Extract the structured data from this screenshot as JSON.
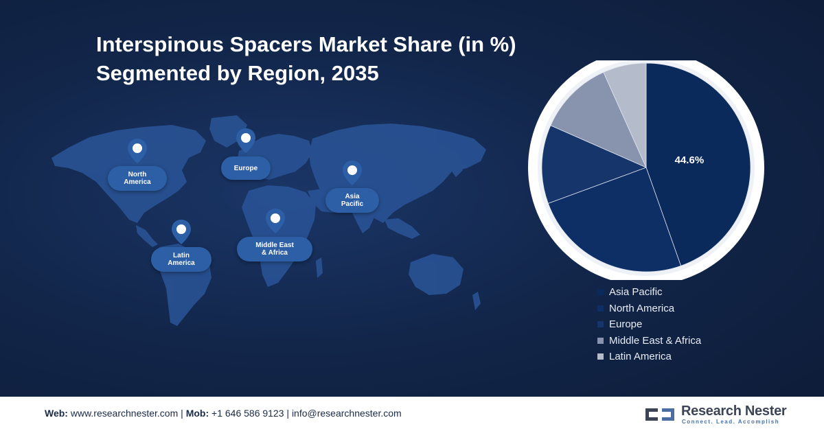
{
  "title": {
    "line1": "Interspinous Spacers Market Share (in %)",
    "line2": "Segmented by Region, 2035"
  },
  "map": {
    "regions": [
      {
        "name": "North America",
        "line1": "North",
        "line2": "America"
      },
      {
        "name": "Europe",
        "line1": "Europe",
        "line2": ""
      },
      {
        "name": "Asia Pacific",
        "line1": "Asia",
        "line2": "Pacific"
      },
      {
        "name": "Latin America",
        "line1": "Latin",
        "line2": "America"
      },
      {
        "name": "Middle East & Africa",
        "line1": "Middle East",
        "line2": "& Africa"
      }
    ],
    "marker_icon": "location-pin-icon"
  },
  "chart_data": {
    "type": "pie",
    "title": "Interspinous Spacers Market Share (in %) Segmented by Region, 2035",
    "slices": [
      {
        "label": "Asia Pacific",
        "value": 44.6,
        "color": "#0b2a5c",
        "data_label": "44.6%"
      },
      {
        "label": "North America",
        "value": 24.8,
        "color": "#0e2f66",
        "data_label": ""
      },
      {
        "label": "Europe",
        "value": 12.2,
        "color": "#15356b",
        "data_label": ""
      },
      {
        "label": "Middle East & Africa",
        "value": 11.7,
        "color": "#8894ad",
        "data_label": ""
      },
      {
        "label": "Latin America",
        "value": 6.7,
        "color": "#b4bccc",
        "data_label": ""
      }
    ],
    "start_angle_deg": 0,
    "legend_position": "bottom-right"
  },
  "legend": {
    "items": [
      {
        "label": "Asia Pacific",
        "color": "#0b2a5c"
      },
      {
        "label": "North America",
        "color": "#0e2f66"
      },
      {
        "label": "Europe",
        "color": "#15356b"
      },
      {
        "label": "Middle East & Africa",
        "color": "#8894ad"
      },
      {
        "label": "Latin America",
        "color": "#b4bccc"
      }
    ]
  },
  "footer": {
    "web_label": "Web:",
    "web_value": "www.researchnester.com",
    "mob_label": "Mob:",
    "mob_value": "+1 646 586 9123",
    "email": "info@researchnester.com",
    "separator": "|",
    "logo_name": "Research Nester",
    "logo_tagline": "Connect. Lead. Accomplish",
    "logo_icon": "research-nester-logo-icon"
  }
}
